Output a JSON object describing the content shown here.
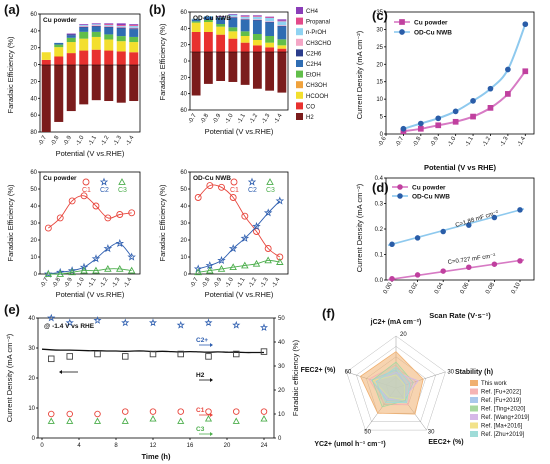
{
  "panels": {
    "a": {
      "letter": "(a)",
      "top": {
        "label": "Cu powder",
        "ylabel": "Faradaic Efficiency (%)",
        "xlabel": "Potential (V vs.RHE)",
        "yticks": [
          "60",
          "40",
          "20",
          "0",
          "20",
          "40",
          "60",
          "80"
        ]
      },
      "bottom": {
        "label": "Cu powder",
        "ylabel": "Faradaic Efficiency (%)",
        "xlabel": "Potential (V vs.RHE)",
        "yticks": [
          "0",
          "10",
          "20",
          "30",
          "40",
          "50",
          "60"
        ],
        "legend": [
          "C1",
          "C2",
          "C3"
        ]
      }
    },
    "b": {
      "letter": "(b)",
      "top": {
        "label": "OD-Cu NWB",
        "ylabel": "Faradaic Efficiency (%)",
        "xlabel": "Potential (V vs.RHE)",
        "yticks": [
          "60",
          "40",
          "20",
          "0",
          "20",
          "40",
          "60"
        ],
        "legend": [
          "CH4",
          "Propanal",
          "n-PrOH",
          "CH3CHO",
          "C2H6",
          "C2H4",
          "EtOH",
          "CH3OH",
          "HCOOH",
          "CO",
          "H2"
        ]
      },
      "bottom": {
        "label": "OD-Cu NWB",
        "ylabel": "Faradaic Efficiency (%)",
        "xlabel": "Potential (V vs.RHE)",
        "yticks": [
          "0",
          "10",
          "20",
          "30",
          "40",
          "50",
          "60"
        ],
        "legend": [
          "C1",
          "C2",
          "C3"
        ]
      }
    },
    "c": {
      "letter": "(c)",
      "ylabel": "Current Density (mA cm⁻²)",
      "xlabel": "Potential (V vs RHE)",
      "yticks": [
        "0",
        "5",
        "10",
        "15",
        "20",
        "25",
        "30",
        "35"
      ],
      "legend": [
        "Cu powder",
        "OD-Cu NWB"
      ]
    },
    "d": {
      "letter": "(d)",
      "ylabel": "Current Density (mA cm⁻²)",
      "xlabel": "Scan Rate (V·s⁻¹)",
      "yticks": [
        "0.0",
        "0.1",
        "0.2",
        "0.3",
        "0.4"
      ],
      "xticks": [
        "0.00",
        "0.02",
        "0.04",
        "0.06",
        "0.08",
        "0.10"
      ],
      "legend": [
        "Cu powder",
        "OD-Cu NWB"
      ],
      "annot_high": "C=1.88 mF cm⁻²",
      "annot_low": "C=0.727 mF cm⁻²"
    },
    "e": {
      "letter": "(e)",
      "note": "@ -1.4 V vs RHE",
      "ylabel": "Current Density (mA cm⁻²)",
      "ylabel_right": "Faradaic efficiency (%)",
      "xlabel": "Time (h)",
      "yticks": [
        "0",
        "10",
        "20",
        "30",
        "40"
      ],
      "yticks_right": [
        "0",
        "10",
        "20",
        "30",
        "40",
        "50"
      ],
      "xticks": [
        "0",
        "4",
        "8",
        "12",
        "16",
        "20",
        "24"
      ],
      "labels": [
        "C2+",
        "H2",
        "C1",
        "C3"
      ]
    },
    "f": {
      "letter": "(f)",
      "axes": [
        "jC2+ (mA cm⁻²)",
        "Stability (h)",
        "EEC2+ (%)",
        "YC2+ (umol h⁻¹ cm⁻²)",
        "FEC2+ (%)"
      ],
      "axis_max": [
        "20",
        "30",
        "30",
        "50",
        "60"
      ],
      "legend": [
        "This work",
        "Ref. [Fu+2022]",
        "Ref. [Fu+2019]",
        "Ref. [Ting+2020]",
        "Ref. [Wang+2019]",
        "Ref. [Ma+2016]",
        "Ref. [Zhu+2019]"
      ]
    }
  },
  "chart_data": [
    {
      "type": "bar",
      "id": "a-top",
      "categories": [
        "-0.7",
        "-0.8",
        "-0.9",
        "-1.0",
        "-1.1",
        "-1.2",
        "-1.3",
        "-1.4"
      ],
      "series": [
        {
          "name": "H2",
          "values": [
            80,
            68,
            55,
            47,
            42,
            43,
            45,
            43
          ],
          "color": "#7b1c1c"
        },
        {
          "name": "CO",
          "values": [
            6,
            10,
            14,
            17,
            18,
            17,
            16,
            15
          ],
          "color": "#e8312f"
        },
        {
          "name": "HCOOH",
          "values": [
            9,
            11,
            13,
            14,
            15,
            13,
            12,
            12
          ],
          "color": "#f3df2e"
        },
        {
          "name": "CH3OH",
          "values": [
            0,
            0,
            0,
            0,
            0,
            0,
            0,
            0
          ],
          "color": "#f0a23c"
        },
        {
          "name": "EtOH",
          "values": [
            0,
            3,
            5,
            8,
            6,
            6,
            6,
            6
          ],
          "color": "#61be4a"
        },
        {
          "name": "C2H4",
          "values": [
            0,
            2,
            3,
            5,
            6,
            8,
            9,
            9
          ],
          "color": "#2f6db3"
        },
        {
          "name": "C2H6",
          "values": [
            0,
            0,
            1,
            1,
            1,
            1,
            1,
            1
          ],
          "color": "#2b3d8c"
        },
        {
          "name": "CH3CHO",
          "values": [
            0,
            0,
            0,
            1,
            1,
            1,
            1,
            1
          ],
          "color": "#f4a6c6"
        },
        {
          "name": "n-PrOH",
          "values": [
            0,
            0,
            0,
            1,
            1,
            1,
            1,
            2
          ],
          "color": "#8fd3f2"
        },
        {
          "name": "Propanal",
          "values": [
            0,
            0,
            0,
            0,
            0,
            1,
            1,
            1
          ],
          "color": "#e34a8a"
        },
        {
          "name": "CH4",
          "values": [
            0,
            0,
            1,
            1,
            1,
            1,
            2,
            1
          ],
          "color": "#8a3db8"
        }
      ]
    },
    {
      "type": "bar",
      "id": "b-top",
      "categories": [
        "-0.7",
        "-0.8",
        "-0.9",
        "-1.0",
        "-1.1",
        "-1.2",
        "-1.3",
        "-1.4"
      ],
      "series": [
        {
          "name": "H2",
          "values": [
            45,
            33,
            30,
            31,
            34,
            38,
            40,
            42
          ],
          "color": "#7b1c1c"
        },
        {
          "name": "CO",
          "values": [
            30,
            30,
            26,
            20,
            14,
            10,
            7,
            5
          ],
          "color": "#e8312f"
        },
        {
          "name": "HCOOH",
          "values": [
            14,
            15,
            12,
            11,
            10,
            8,
            7,
            5
          ],
          "color": "#f3df2e"
        },
        {
          "name": "CH3OH",
          "values": [
            0,
            0,
            0,
            0,
            0,
            0,
            0,
            0
          ],
          "color": "#f0a23c"
        },
        {
          "name": "EtOH",
          "values": [
            2,
            3,
            4,
            6,
            7,
            9,
            10,
            9
          ],
          "color": "#61be4a"
        },
        {
          "name": "C2H4",
          "values": [
            3,
            5,
            9,
            14,
            17,
            20,
            20,
            19
          ],
          "color": "#2f6db3"
        },
        {
          "name": "C2H6",
          "values": [
            0,
            0,
            0,
            1,
            1,
            1,
            1,
            1
          ],
          "color": "#2b3d8c"
        },
        {
          "name": "CH3CHO",
          "values": [
            0,
            0,
            0,
            1,
            1,
            1,
            1,
            1
          ],
          "color": "#f4a6c6"
        },
        {
          "name": "n-PrOH",
          "values": [
            1,
            1,
            2,
            3,
            3,
            4,
            5,
            6
          ],
          "color": "#8fd3f2"
        },
        {
          "name": "Propanal",
          "values": [
            0,
            0,
            0,
            0,
            1,
            1,
            1,
            1
          ],
          "color": "#e34a8a"
        },
        {
          "name": "CH4",
          "values": [
            0,
            0,
            1,
            1,
            1,
            1,
            1,
            2
          ],
          "color": "#8a3db8"
        }
      ]
    },
    {
      "type": "scatter",
      "id": "a-bottom",
      "categories": [
        "-0.7",
        "-0.8",
        "-0.9",
        "-1.0",
        "-1.1",
        "-1.2",
        "-1.3",
        "-1.4"
      ],
      "ylim": [
        0,
        60
      ],
      "series": [
        {
          "name": "C1",
          "values": [
            27,
            33,
            43,
            46,
            40,
            33,
            35,
            36
          ],
          "color": "#e8473e",
          "marker": "circle"
        },
        {
          "name": "C2",
          "values": [
            0,
            1,
            2,
            4,
            9,
            15,
            18,
            10
          ],
          "color": "#2f5fb0",
          "marker": "star"
        },
        {
          "name": "C3",
          "values": [
            0,
            0,
            1,
            2,
            2,
            3,
            3,
            2
          ],
          "color": "#4cae4c",
          "marker": "triangle"
        }
      ]
    },
    {
      "type": "scatter",
      "id": "b-bottom",
      "categories": [
        "-0.7",
        "-0.8",
        "-0.9",
        "-1.0",
        "-1.1",
        "-1.2",
        "-1.3",
        "-1.4"
      ],
      "ylim": [
        0,
        60
      ],
      "series": [
        {
          "name": "C1",
          "values": [
            45,
            52,
            51,
            45,
            34,
            25,
            15,
            10
          ],
          "color": "#e8473e",
          "marker": "circle"
        },
        {
          "name": "C2",
          "values": [
            3,
            5,
            8,
            15,
            21,
            28,
            36,
            43
          ],
          "color": "#2f5fb0",
          "marker": "star"
        },
        {
          "name": "C3",
          "values": [
            1,
            2,
            3,
            4,
            5,
            6,
            8,
            7
          ],
          "color": "#4cae4c",
          "marker": "triangle"
        }
      ]
    },
    {
      "type": "line",
      "id": "c",
      "x": [
        -0.7,
        -0.8,
        -0.9,
        -1.0,
        -1.1,
        -1.2,
        -1.3,
        -1.4
      ],
      "xticks": [
        "-0.6",
        "-0.7",
        "-0.8",
        "-0.9",
        "-1.0",
        "-1.1",
        "-1.2",
        "-1.3",
        "-1.4"
      ],
      "ylim": [
        0,
        35
      ],
      "series": [
        {
          "name": "Cu powder",
          "values": [
            0.8,
            1.5,
            2.5,
            3.5,
            5.0,
            7.5,
            11.5,
            18.0
          ],
          "color": "#c0409f",
          "marker": "square"
        },
        {
          "name": "OD-Cu NWB",
          "values": [
            1.5,
            3.0,
            4.5,
            6.5,
            9.5,
            13.0,
            18.5,
            31.5
          ],
          "color": "#2a5da8",
          "marker": "circle"
        }
      ]
    },
    {
      "type": "scatter",
      "id": "d",
      "x": [
        0.0,
        0.02,
        0.04,
        0.06,
        0.08,
        0.1
      ],
      "xlim": [
        0.0,
        0.1
      ],
      "ylim": [
        0.0,
        0.4
      ],
      "series": [
        {
          "name": "Cu powder",
          "values": [
            0.005,
            0.02,
            0.035,
            0.05,
            0.062,
            0.075
          ],
          "color": "#c0409f",
          "marker": "circle"
        },
        {
          "name": "OD-Cu NWB",
          "values": [
            0.14,
            0.165,
            0.19,
            0.215,
            0.245,
            0.275
          ],
          "color": "#2a5da8",
          "marker": "circle"
        }
      ]
    },
    {
      "type": "line",
      "id": "e",
      "xlim": [
        0,
        24
      ],
      "ylim": [
        0,
        40
      ],
      "ylim_right": [
        0,
        50
      ],
      "current_density": {
        "x": [
          0,
          1,
          2,
          3,
          4,
          5,
          6,
          7,
          8,
          9,
          10,
          11,
          12,
          13,
          14,
          15,
          16,
          17,
          18,
          19,
          20,
          21,
          22,
          23,
          24
        ],
        "values": [
          29.6,
          29.4,
          29.3,
          29.3,
          29.2,
          29.1,
          29.1,
          29.0,
          29.0,
          28.9,
          29.0,
          29.0,
          28.8,
          28.9,
          28.8,
          28.7,
          28.8,
          28.7,
          28.6,
          28.7,
          28.6,
          28.6,
          28.5,
          28.5,
          28.5
        ]
      },
      "fe_time": [
        1,
        3,
        6,
        9,
        12,
        15,
        18,
        21,
        24
      ],
      "series": [
        {
          "name": "C2+",
          "values": [
            50,
            48,
            49,
            48,
            48,
            47,
            48,
            47,
            46
          ],
          "color": "#2f5fb0",
          "marker": "star"
        },
        {
          "name": "H2",
          "values": [
            33,
            34,
            35,
            34,
            35,
            35,
            34,
            35,
            36
          ],
          "color": "#444444",
          "marker": "square"
        },
        {
          "name": "C1",
          "values": [
            10,
            10,
            10,
            11,
            11,
            11,
            11,
            11,
            11
          ],
          "color": "#e8473e",
          "marker": "circle"
        },
        {
          "name": "C3",
          "values": [
            7,
            7,
            7,
            7,
            8,
            7,
            8,
            7,
            8
          ],
          "color": "#4cae4c",
          "marker": "triangle"
        }
      ]
    },
    {
      "type": "radar",
      "id": "f",
      "series": [
        {
          "name": "This work",
          "values": [
            0.7,
            0.55,
            0.62,
            0.6,
            0.72
          ],
          "color": "#f0b070"
        },
        {
          "name": "Ref. [Fu+2022]",
          "values": [
            0.45,
            0.3,
            0.4,
            0.38,
            0.55
          ],
          "color": "#f5b4b4"
        },
        {
          "name": "Ref. [Fu+2019]",
          "values": [
            0.35,
            0.2,
            0.32,
            0.3,
            0.5
          ],
          "color": "#a9c8ec"
        },
        {
          "name": "Ref. [Ting+2020]",
          "values": [
            0.5,
            0.35,
            0.3,
            0.45,
            0.48
          ],
          "color": "#a8d8a0"
        },
        {
          "name": "Ref. [Wang+2019]",
          "values": [
            0.3,
            0.45,
            0.25,
            0.28,
            0.42
          ],
          "color": "#d6b8e8"
        },
        {
          "name": "Ref. [Ma+2016]",
          "values": [
            0.25,
            0.18,
            0.28,
            0.22,
            0.46
          ],
          "color": "#f2e28a"
        },
        {
          "name": "Ref. [Zhu+2019]",
          "values": [
            0.4,
            0.28,
            0.35,
            0.34,
            0.4
          ],
          "color": "#9fdcd8"
        }
      ]
    }
  ]
}
